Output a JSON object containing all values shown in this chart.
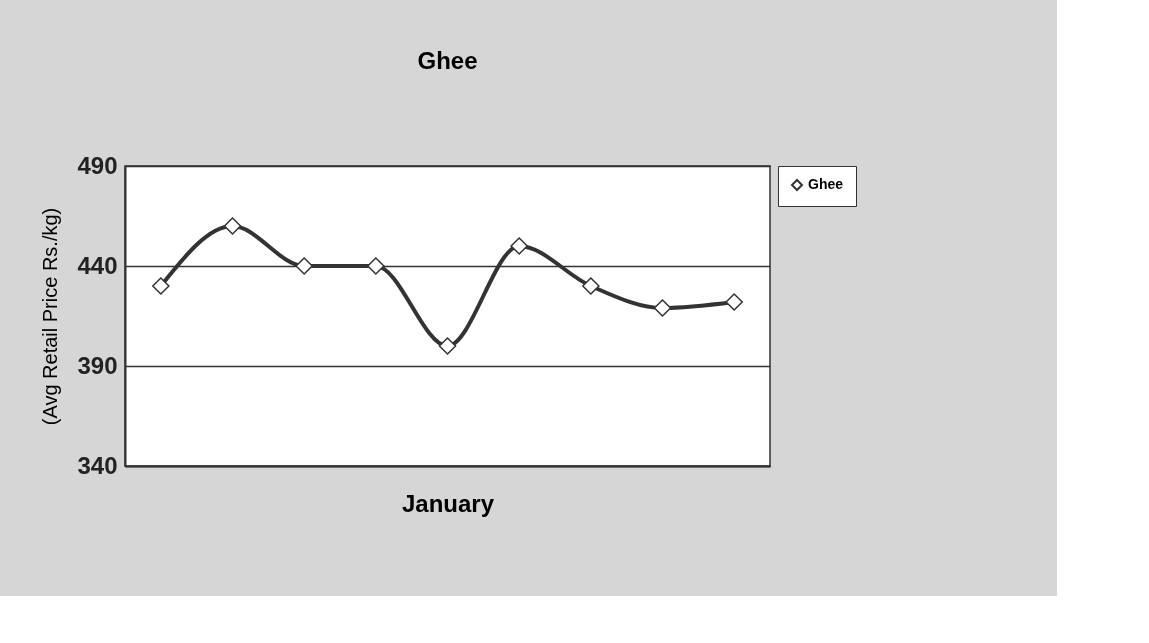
{
  "chart_data": {
    "type": "line",
    "title": "Ghee",
    "xlabel": "January",
    "ylabel": "(Avg Retail Price Rs./kg)",
    "categories": [
      null,
      null,
      null,
      null,
      null,
      null,
      null,
      null,
      null
    ],
    "series": [
      {
        "name": "Ghee",
        "color": "#333333",
        "values": [
          430,
          460,
          440,
          440,
          400,
          450,
          430,
          419,
          422
        ]
      }
    ],
    "ylim": [
      340,
      490
    ],
    "yticks": [
      340,
      390,
      440,
      490
    ],
    "grid": "y",
    "legend": "right",
    "marker": "diamond",
    "line_style": "solid"
  }
}
